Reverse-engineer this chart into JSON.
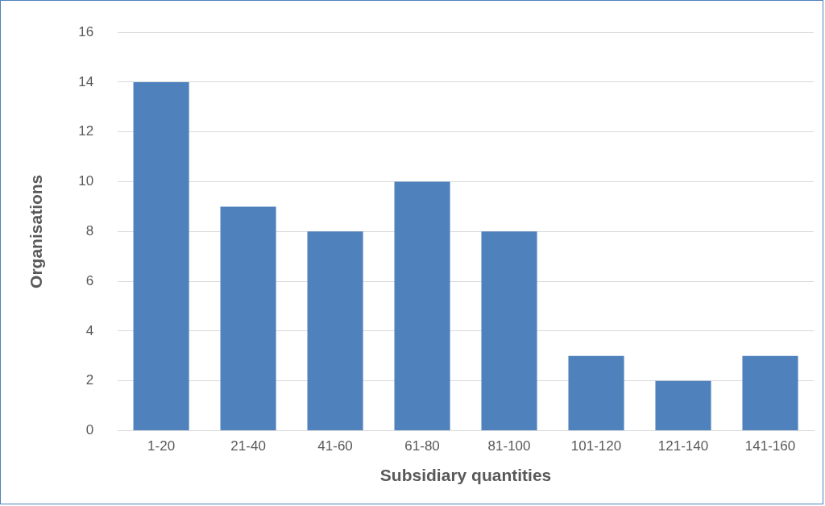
{
  "chart_data": {
    "type": "bar",
    "xlabel": "Subsidiary quantities",
    "ylabel": "Organisations",
    "categories": [
      "1-20",
      "21-40",
      "41-60",
      "61-80",
      "81-100",
      "101-120",
      "121-140",
      "141-160"
    ],
    "values": [
      14,
      9,
      8,
      10,
      8,
      3,
      2,
      3
    ],
    "color": "#4f81bd",
    "ylim": [
      0,
      16
    ],
    "yticks": [
      0,
      2,
      4,
      6,
      8,
      10,
      12,
      14,
      16
    ],
    "grid": "y",
    "legend": false
  }
}
